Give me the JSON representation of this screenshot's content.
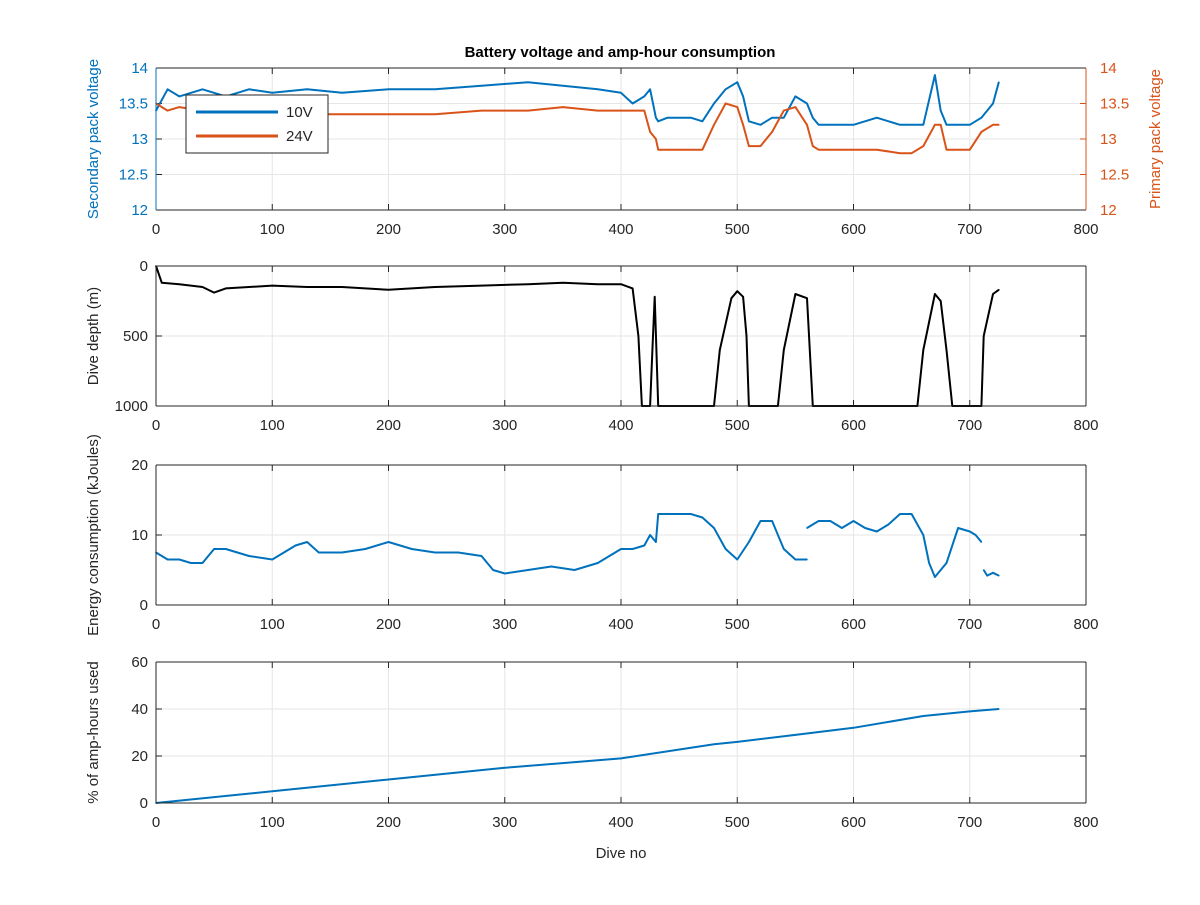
{
  "figure": {
    "title": "Battery voltage and amp-hour consumption"
  },
  "chart_data": [
    {
      "type": "line",
      "title": "Battery voltage and amp-hour consumption",
      "xlabel": "",
      "ylabel_left": "Secondary pack voltage",
      "ylabel_right": "Primary pack voltage",
      "xlim": [
        0,
        800
      ],
      "ylim_left": [
        12,
        14
      ],
      "ylim_right": [
        12,
        14
      ],
      "xticks": [
        "0",
        "100",
        "200",
        "300",
        "400",
        "500",
        "600",
        "700",
        "800"
      ],
      "yticks_left": [
        "12",
        "12.5",
        "13",
        "13.5",
        "14"
      ],
      "yticks_right": [
        "12",
        "12.5",
        "13",
        "13.5",
        "14"
      ],
      "grid": true,
      "legend": {
        "placement": "top-left",
        "entries": [
          "10V",
          "24V"
        ]
      },
      "series": [
        {
          "name": "10V",
          "axis": "left",
          "color": "#0072BD",
          "x": [
            0,
            10,
            20,
            40,
            60,
            80,
            100,
            130,
            160,
            200,
            240,
            280,
            320,
            350,
            380,
            400,
            410,
            420,
            425,
            430,
            432,
            440,
            460,
            470,
            480,
            490,
            500,
            505,
            510,
            520,
            530,
            540,
            550,
            560,
            565,
            570,
            580,
            600,
            620,
            640,
            650,
            660,
            670,
            675,
            680,
            690,
            700,
            710,
            720,
            725
          ],
          "y": [
            13.4,
            13.7,
            13.6,
            13.7,
            13.6,
            13.7,
            13.65,
            13.7,
            13.65,
            13.7,
            13.7,
            13.75,
            13.8,
            13.75,
            13.7,
            13.65,
            13.5,
            13.6,
            13.7,
            13.3,
            13.25,
            13.3,
            13.3,
            13.25,
            13.5,
            13.7,
            13.8,
            13.6,
            13.25,
            13.2,
            13.3,
            13.3,
            13.6,
            13.5,
            13.3,
            13.2,
            13.2,
            13.2,
            13.3,
            13.2,
            13.2,
            13.2,
            13.9,
            13.4,
            13.2,
            13.2,
            13.2,
            13.3,
            13.5,
            13.8
          ]
        },
        {
          "name": "24V",
          "axis": "right",
          "color": "#D95319",
          "x": [
            0,
            10,
            20,
            40,
            60,
            80,
            100,
            130,
            160,
            200,
            240,
            280,
            320,
            350,
            380,
            400,
            410,
            420,
            425,
            430,
            432,
            440,
            460,
            470,
            480,
            490,
            500,
            505,
            510,
            520,
            530,
            540,
            550,
            560,
            565,
            570,
            580,
            600,
            620,
            640,
            650,
            660,
            670,
            675,
            680,
            690,
            700,
            710,
            720,
            725
          ],
          "y": [
            13.5,
            13.4,
            13.45,
            13.4,
            13.4,
            13.4,
            13.4,
            13.35,
            13.35,
            13.35,
            13.35,
            13.4,
            13.4,
            13.45,
            13.4,
            13.4,
            13.4,
            13.4,
            13.1,
            13.0,
            12.85,
            12.85,
            12.85,
            12.85,
            13.2,
            13.5,
            13.45,
            13.2,
            12.9,
            12.9,
            13.1,
            13.4,
            13.45,
            13.2,
            12.9,
            12.85,
            12.85,
            12.85,
            12.85,
            12.8,
            12.8,
            12.9,
            13.2,
            13.2,
            12.85,
            12.85,
            12.85,
            13.1,
            13.2,
            13.2
          ]
        }
      ]
    },
    {
      "type": "line",
      "xlabel": "",
      "ylabel": "Dive depth (m)",
      "xlim": [
        0,
        800
      ],
      "ylim": [
        0,
        1000
      ],
      "y_reversed": true,
      "xticks": [
        "0",
        "100",
        "200",
        "300",
        "400",
        "500",
        "600",
        "700",
        "800"
      ],
      "yticks": [
        "0",
        "500",
        "1000"
      ],
      "grid": true,
      "series": [
        {
          "color": "#000000",
          "x": [
            0,
            5,
            20,
            40,
            50,
            60,
            80,
            100,
            130,
            160,
            200,
            240,
            280,
            320,
            350,
            380,
            400,
            410,
            415,
            418,
            425,
            427,
            429,
            432,
            435,
            460,
            475,
            480,
            485,
            495,
            500,
            505,
            508,
            510,
            530,
            535,
            540,
            550,
            560,
            565,
            600,
            640,
            655,
            660,
            670,
            675,
            680,
            685,
            700,
            710,
            712,
            720,
            725
          ],
          "y": [
            0,
            120,
            130,
            150,
            190,
            160,
            150,
            140,
            150,
            150,
            170,
            150,
            140,
            130,
            120,
            130,
            130,
            160,
            500,
            1000,
            1000,
            600,
            220,
            1000,
            1000,
            1000,
            1000,
            1000,
            600,
            230,
            180,
            220,
            500,
            1000,
            1000,
            1000,
            600,
            200,
            230,
            1000,
            1000,
            1000,
            1000,
            600,
            200,
            250,
            600,
            1000,
            1000,
            1000,
            500,
            200,
            170
          ]
        }
      ]
    },
    {
      "type": "line",
      "xlabel": "",
      "ylabel": "Energy consumption (kJoules)",
      "xlim": [
        0,
        800
      ],
      "ylim": [
        0,
        20
      ],
      "xticks": [
        "0",
        "100",
        "200",
        "300",
        "400",
        "500",
        "600",
        "700",
        "800"
      ],
      "yticks": [
        "0",
        "10",
        "20"
      ],
      "grid": true,
      "series": [
        {
          "color": "#0072BD",
          "segments": [
            {
              "x": [
                0,
                10,
                20,
                30,
                40,
                50,
                60,
                80,
                100,
                120,
                130,
                140,
                160,
                180,
                200,
                220,
                240,
                260,
                280,
                290,
                300,
                320,
                340,
                360,
                380,
                400,
                410,
                420,
                425,
                430,
                432,
                440,
                460,
                470,
                480,
                490,
                500,
                510,
                520,
                530,
                540,
                550,
                560
              ],
              "y": [
                7.5,
                6.5,
                6.5,
                6,
                6,
                8,
                8,
                7,
                6.5,
                8.5,
                9,
                7.5,
                7.5,
                8,
                9,
                8,
                7.5,
                7.5,
                7,
                5,
                4.5,
                5,
                5.5,
                5,
                6,
                8,
                8,
                8.5,
                10,
                9,
                13,
                13,
                13,
                12.5,
                11,
                8,
                6.5,
                9,
                12,
                12,
                8,
                6.5,
                6.5
              ]
            },
            {
              "x": [
                560,
                570,
                580,
                590,
                600,
                610,
                620,
                630,
                640,
                650,
                660,
                665,
                670,
                680,
                690,
                700,
                705,
                710
              ],
              "y": [
                11,
                12,
                12,
                11,
                12,
                11,
                10.5,
                11.5,
                13,
                13,
                10,
                6,
                4,
                6,
                11,
                10.5,
                10,
                9
              ]
            },
            {
              "x": [
                712,
                715,
                720,
                725
              ],
              "y": [
                5,
                4.2,
                4.6,
                4.2
              ]
            }
          ]
        }
      ]
    },
    {
      "type": "line",
      "xlabel": "Dive no",
      "ylabel": "% of amp-hours used",
      "xlim": [
        0,
        800
      ],
      "ylim": [
        0,
        60
      ],
      "xticks": [
        "0",
        "100",
        "200",
        "300",
        "400",
        "500",
        "600",
        "700",
        "800"
      ],
      "yticks": [
        "0",
        "20",
        "40",
        "60"
      ],
      "grid": true,
      "series": [
        {
          "color": "#0072BD",
          "x": [
            0,
            100,
            200,
            300,
            400,
            480,
            500,
            550,
            600,
            660,
            700,
            725
          ],
          "y": [
            0,
            5,
            10,
            15,
            19,
            25,
            26,
            29,
            32,
            37,
            39,
            40
          ]
        }
      ]
    }
  ]
}
